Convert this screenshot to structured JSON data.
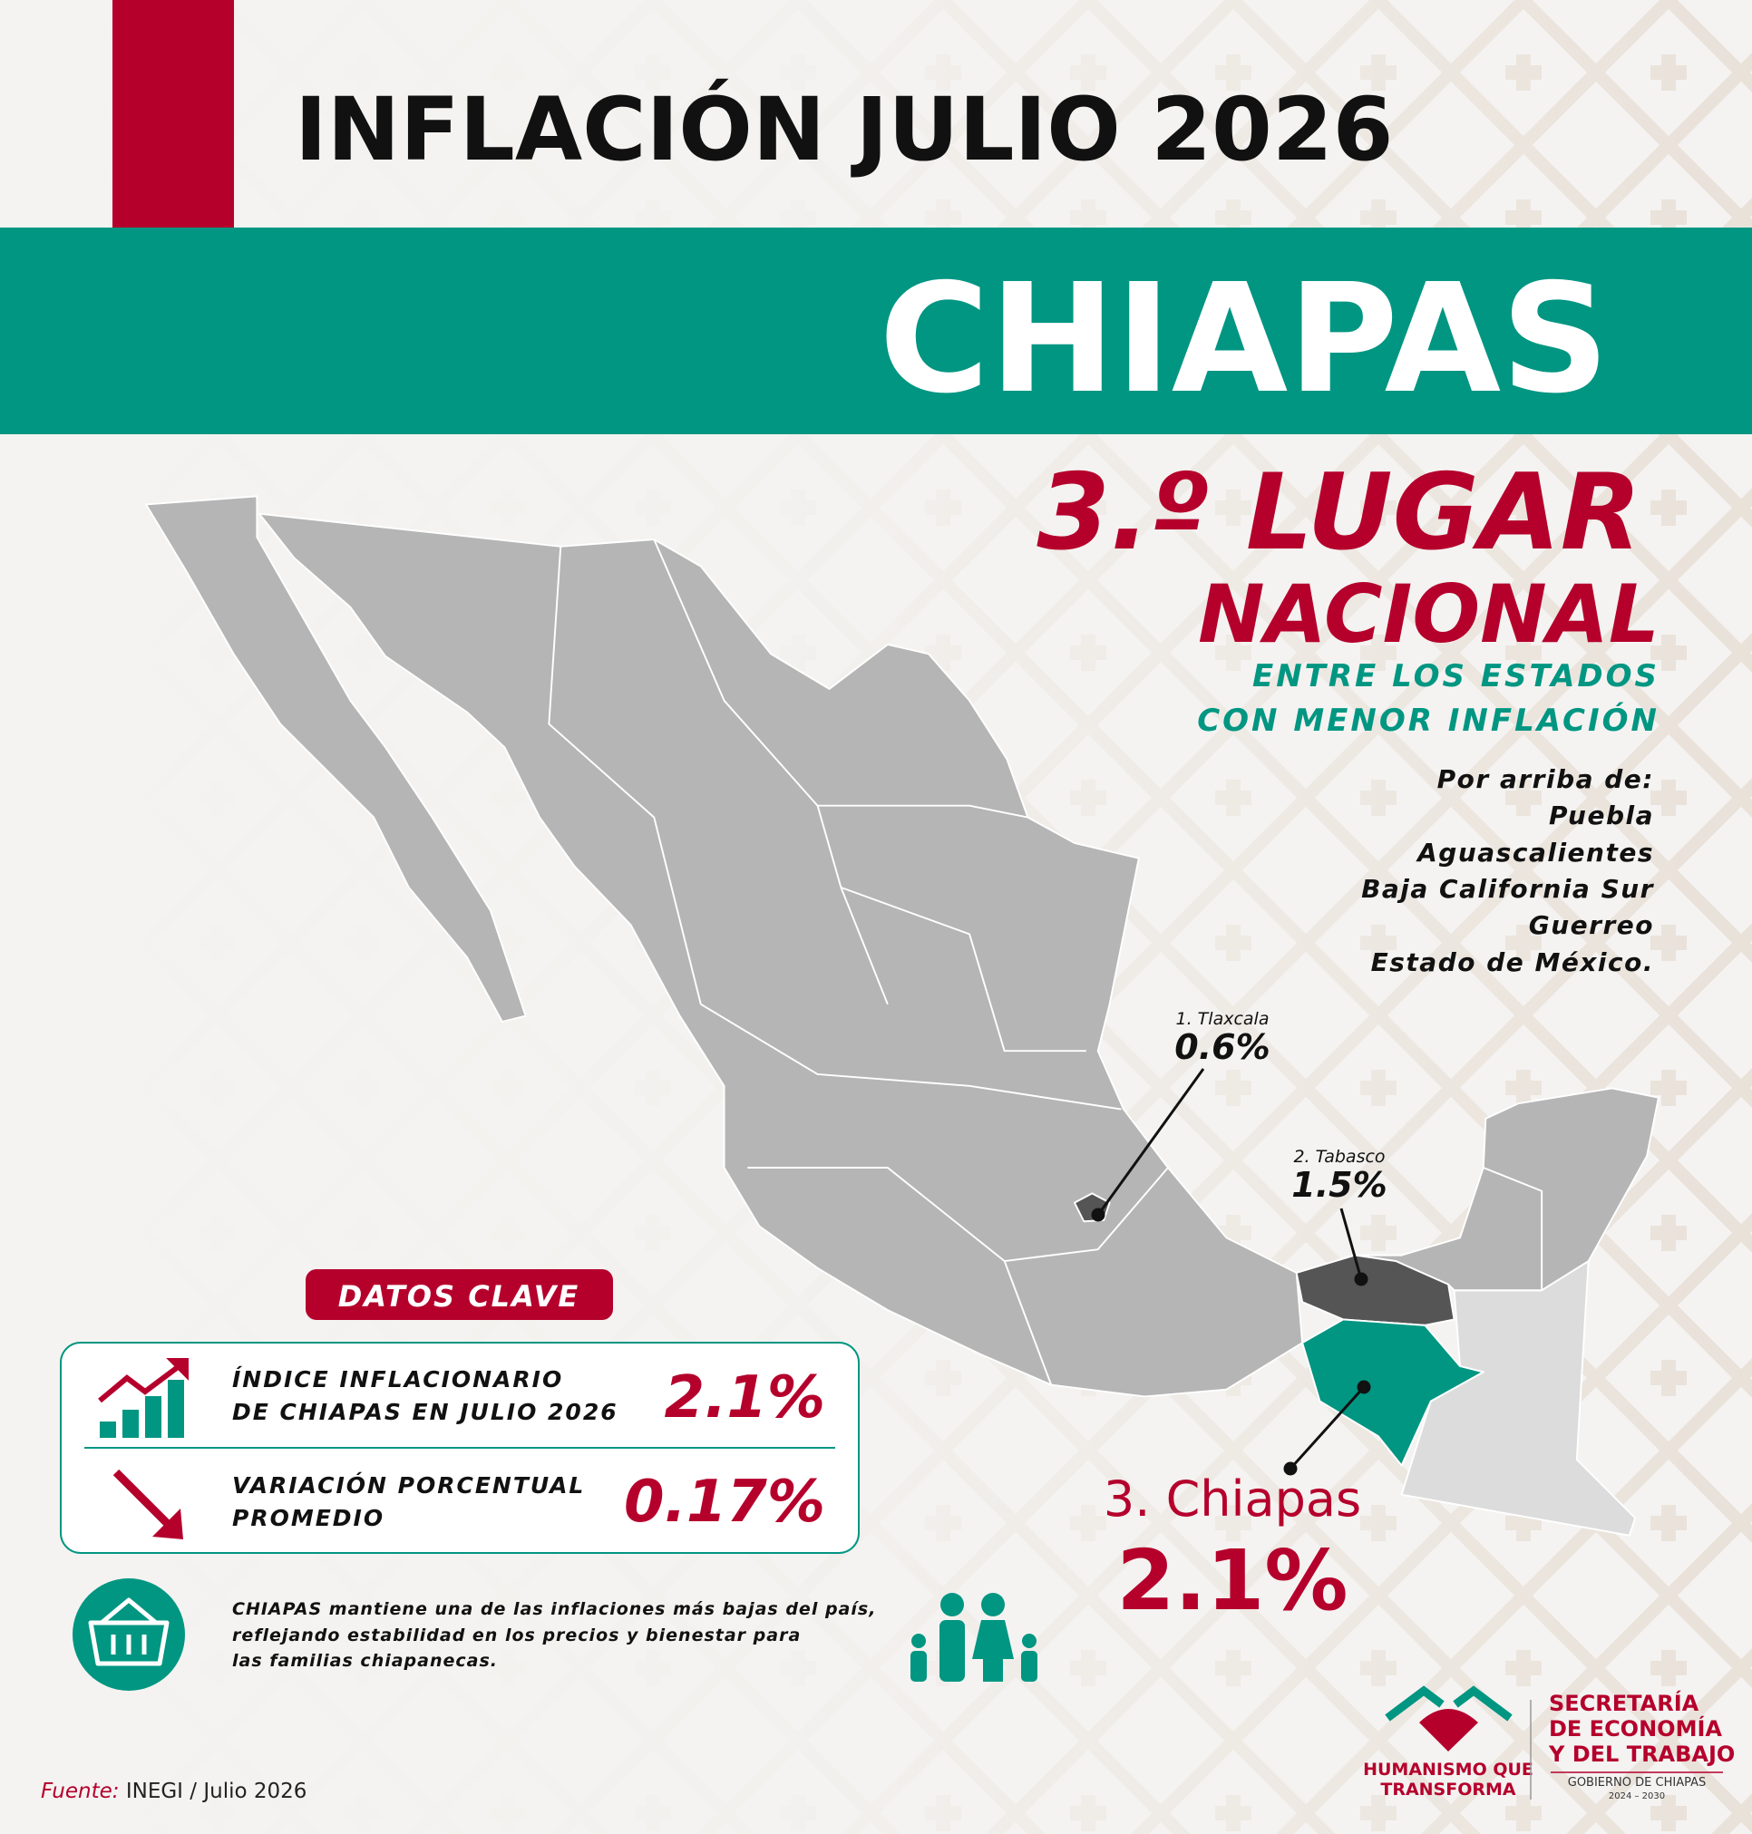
{
  "header": {
    "title": "INFLACIÓN JULIO 2026",
    "state": "CHIAPAS"
  },
  "ranking": {
    "place": "3.º LUGAR",
    "scope": "NACIONAL",
    "subtitle_lines": [
      "ENTRE LOS ESTADOS",
      "CON MENOR INFLACIÓN"
    ],
    "above_label": "Por arriba de:",
    "above_states": [
      "Puebla",
      "Aguascalientes",
      "Baja California Sur",
      "Guerreo",
      "Estado de México."
    ]
  },
  "map_labels": [
    {
      "name": "1. Tlaxcala",
      "value": "0.6%"
    },
    {
      "name": "2. Tabasco",
      "value": "1.5%"
    },
    {
      "name": "3. Chiapas",
      "value": "2.1%"
    }
  ],
  "key_data": {
    "title": "DATOS CLAVE",
    "rows": [
      {
        "label_lines": [
          "ÍNDICE INFLACIONARIO",
          "DE CHIAPAS EN JULIO 2026"
        ],
        "value": "2.1%"
      },
      {
        "label_lines": [
          "VARIACIÓN PORCENTUAL",
          "PROMEDIO"
        ],
        "value": "0.17%"
      }
    ]
  },
  "note_lines": [
    "CHIAPAS mantiene una de las inflaciones más bajas del país,",
    "reflejando estabilidad en los precios y bienestar para",
    "las familias chiapanecas."
  ],
  "source": {
    "prefix": "Fuente:",
    "text": "INEGI / Julio 2026"
  },
  "logos": {
    "humanismo_lines": [
      "HUMANISMO QUE",
      "TRANSFORMA"
    ],
    "secretaria_lines": [
      "SECRETARÍA",
      "DE ECONOMÍA",
      "Y DEL TRABAJO"
    ],
    "gobierno": "GOBIERNO DE CHIAPAS",
    "years": "2024 – 2030"
  }
}
